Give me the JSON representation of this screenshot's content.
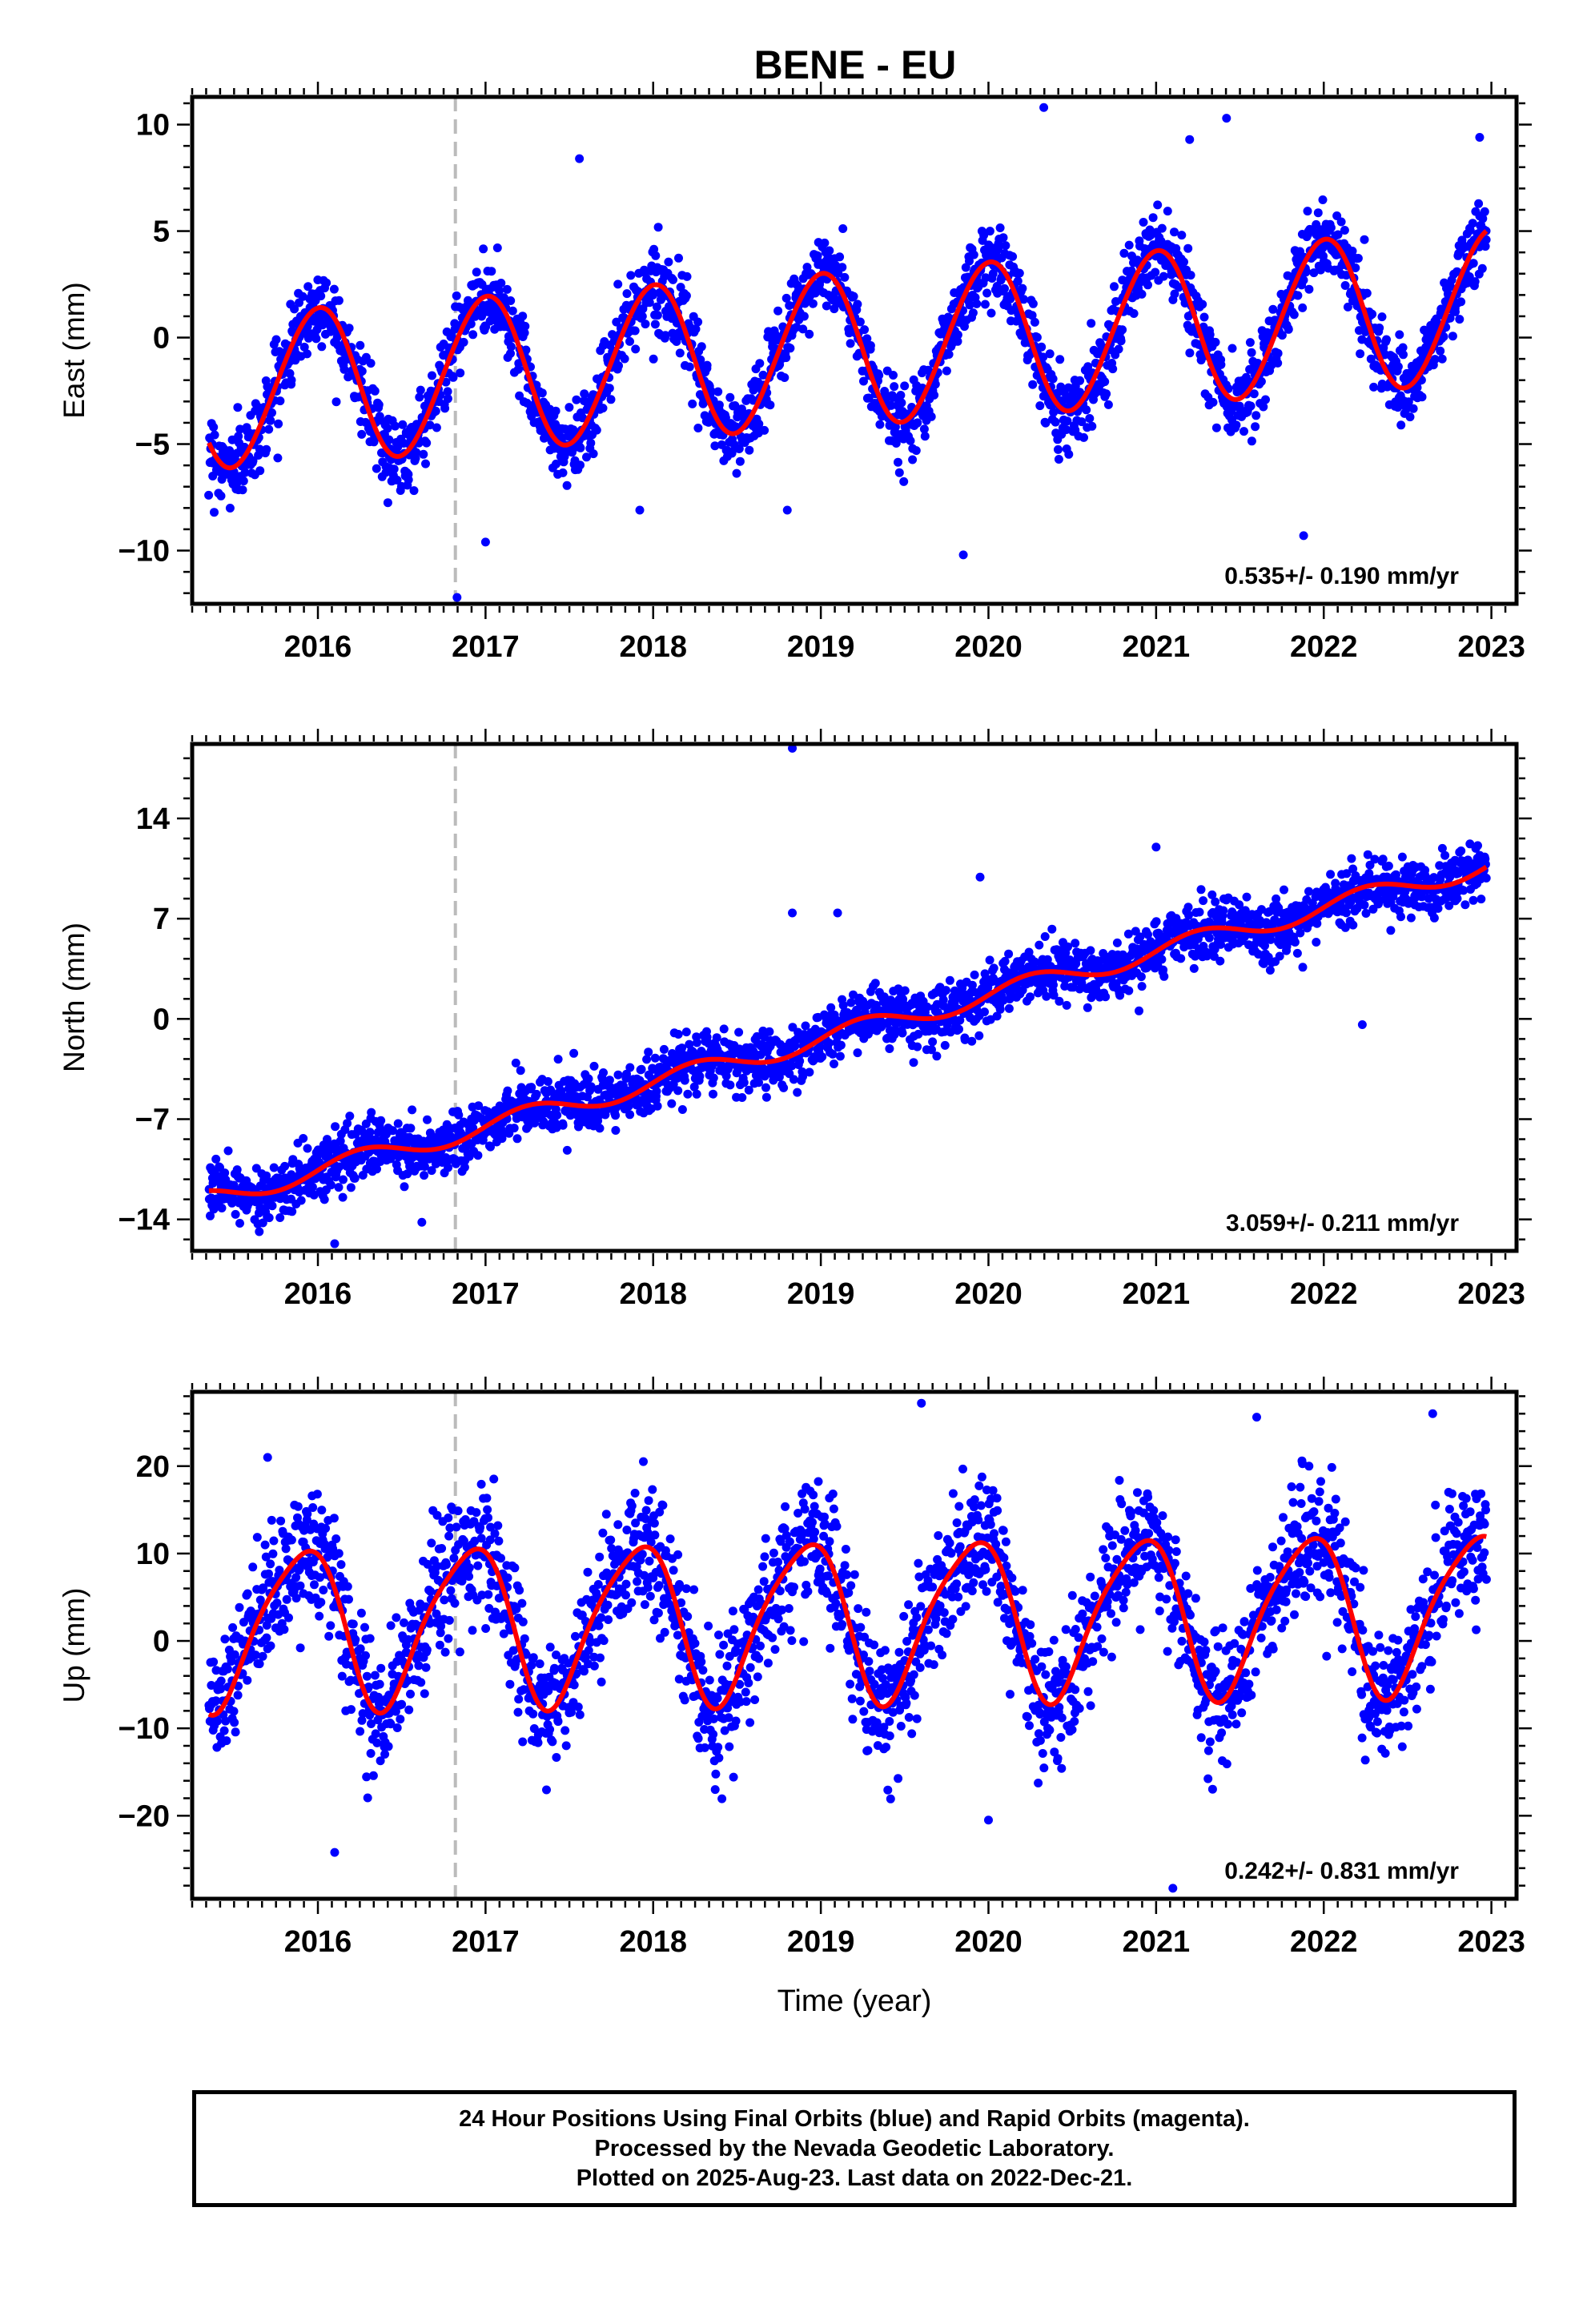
{
  "title": "BENE - EU",
  "colors": {
    "final_orbits": "#0000ff",
    "rapid_orbits": "#ff00ff",
    "model": "#ff0000",
    "event_line": "#bbbbbb"
  },
  "caption": {
    "line1": "24 Hour Positions Using Final Orbits (blue) and Rapid Orbits (magenta).",
    "line2": "Processed by the Nevada Geodetic Laboratory.",
    "line3": "Plotted on 2025-Aug-23. Last data on 2022-Dec-21."
  },
  "chart_data": [
    {
      "type": "scatter",
      "component": "East",
      "ylabel": "East (mm)",
      "xlabel": "",
      "xlim": [
        2015.25,
        2023.15
      ],
      "ylim": [
        -12.5,
        11.3
      ],
      "x_ticks": [
        2016,
        2017,
        2018,
        2019,
        2020,
        2021,
        2022,
        2023
      ],
      "y_ticks": [
        -10,
        -5,
        0,
        5,
        10
      ],
      "y_tick_labels": [
        "−10",
        "−5",
        "0",
        "5",
        "10"
      ],
      "data_start": 2015.35,
      "data_end": 2022.97,
      "event_line_x": 2016.82,
      "rate_label": "0.535+/- 0.190 mm/yr",
      "rate_mm_per_yr": 0.535,
      "rate_sigma": 0.19,
      "model": {
        "offset": -0.6,
        "annual_amplitude": 3.6,
        "annual_phase": 1.6,
        "semiannual_amplitude": 0.2,
        "semiannual_phase": 0.0
      },
      "scatter_sigma": 0.9,
      "outliers": [
        [
          2016.83,
          -12.2
        ],
        [
          2020.33,
          10.8
        ],
        [
          2021.2,
          9.3
        ],
        [
          2021.42,
          10.3
        ],
        [
          2022.93,
          9.4
        ],
        [
          2017.56,
          8.4
        ],
        [
          2021.88,
          -9.3
        ],
        [
          2019.85,
          -10.2
        ],
        [
          2018.8,
          -8.1
        ],
        [
          2017.0,
          -9.6
        ],
        [
          2017.92,
          -8.1
        ]
      ]
    },
    {
      "type": "scatter",
      "component": "North",
      "ylabel": "North (mm)",
      "xlabel": "",
      "xlim": [
        2015.25,
        2023.15
      ],
      "ylim": [
        -16.2,
        19.2
      ],
      "x_ticks": [
        2016,
        2017,
        2018,
        2019,
        2020,
        2021,
        2022,
        2023
      ],
      "y_ticks": [
        -14,
        -7,
        0,
        7,
        14
      ],
      "y_tick_labels": [
        "−14",
        "−7",
        "0",
        "7",
        "14"
      ],
      "data_start": 2015.35,
      "data_end": 2022.97,
      "event_line_x": 2016.82,
      "rate_label": "3.059+/- 0.211 mm/yr",
      "rate_mm_per_yr": 3.059,
      "rate_sigma": 0.211,
      "model": {
        "offset": -1.4,
        "annual_amplitude": 0.7,
        "annual_phase": 0.0,
        "semiannual_amplitude": 0.0,
        "semiannual_phase": 0.0
      },
      "scatter_sigma": 1.0,
      "outliers": [
        [
          2018.83,
          18.9
        ],
        [
          2018.83,
          7.4
        ],
        [
          2019.1,
          7.4
        ],
        [
          2019.95,
          9.9
        ],
        [
          2021.0,
          12.0
        ],
        [
          2022.23,
          -0.4
        ],
        [
          2016.1,
          -15.7
        ],
        [
          2016.62,
          -14.2
        ]
      ]
    },
    {
      "type": "scatter",
      "component": "Up",
      "ylabel": "Up (mm)",
      "xlabel": "Time (year)",
      "xlim": [
        2015.25,
        2023.15
      ],
      "ylim": [
        -29.5,
        28.5
      ],
      "x_ticks": [
        2016,
        2017,
        2018,
        2019,
        2020,
        2021,
        2022,
        2023
      ],
      "y_ticks": [
        -20,
        -10,
        0,
        10,
        20
      ],
      "y_tick_labels": [
        "−20",
        "−10",
        "0",
        "10",
        "20"
      ],
      "data_start": 2015.35,
      "data_end": 2022.97,
      "event_line_x": 2016.82,
      "rate_label": "0.242+/- 0.831 mm/yr",
      "rate_mm_per_yr": 0.242,
      "rate_sigma": 0.831,
      "model": {
        "offset": 2.5,
        "annual_amplitude": 9.0,
        "annual_phase": 2.2,
        "semiannual_amplitude": 1.5,
        "semiannual_phase": 0.6
      },
      "scatter_sigma": 3.6,
      "outliers": [
        [
          2016.1,
          -24.2
        ],
        [
          2021.1,
          -28.3
        ],
        [
          2019.6,
          27.2
        ],
        [
          2022.65,
          26.0
        ],
        [
          2021.6,
          25.6
        ],
        [
          2020.0,
          -20.5
        ],
        [
          2015.7,
          21.0
        ]
      ]
    }
  ]
}
